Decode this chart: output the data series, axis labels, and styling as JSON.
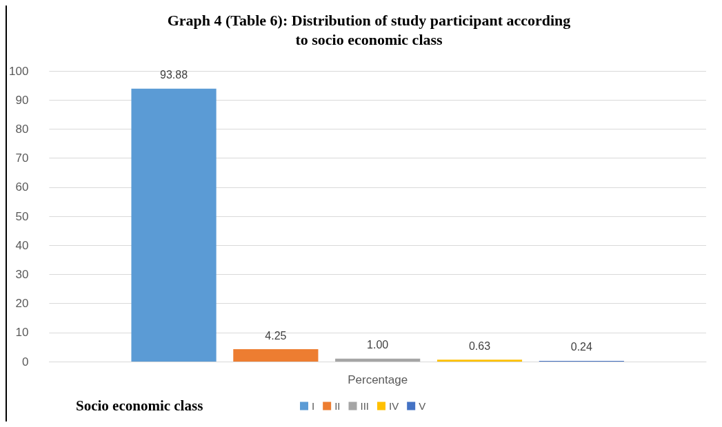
{
  "chart_data": {
    "type": "bar",
    "title": "Graph 4 (Table 6): Distribution of study participant according\nto socio economic class",
    "legend_title": "Socio economic class",
    "categories": [
      "Percentage"
    ],
    "series": [
      {
        "name": "I",
        "color": "#5b9bd5",
        "values": [
          93.88
        ],
        "value_labels": [
          "93.88"
        ]
      },
      {
        "name": "II",
        "color": "#ed7d31",
        "values": [
          4.25
        ],
        "value_labels": [
          "4.25"
        ]
      },
      {
        "name": "III",
        "color": "#a5a5a5",
        "values": [
          1.0
        ],
        "value_labels": [
          "1.00"
        ]
      },
      {
        "name": "IV",
        "color": "#ffc000",
        "values": [
          0.63
        ],
        "value_labels": [
          "0.63"
        ]
      },
      {
        "name": "V",
        "color": "#4472c4",
        "values": [
          0.24
        ],
        "value_labels": [
          "0.24"
        ]
      }
    ],
    "ylim": [
      0,
      100
    ],
    "yticks": [
      0,
      10,
      20,
      30,
      40,
      50,
      60,
      70,
      80,
      90,
      100
    ],
    "grid": "y",
    "legend": "bottom"
  }
}
